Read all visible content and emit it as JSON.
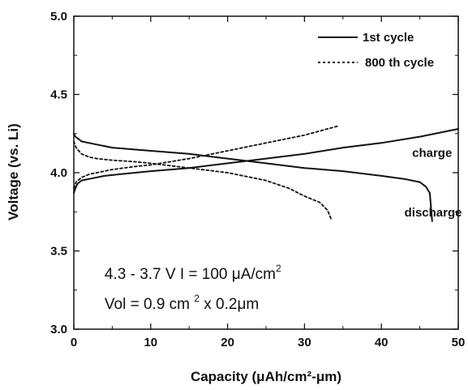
{
  "chart_data": {
    "type": "line",
    "xlabel": "Capacity (μAh/cm²-μm)",
    "ylabel": "Voltage (vs. Li)",
    "xlim": [
      0,
      50
    ],
    "ylim": [
      3.0,
      5.0
    ],
    "xticks": [
      "0",
      "10",
      "20",
      "30",
      "40",
      "50"
    ],
    "yticks": [
      "3.0",
      "3.5",
      "4.0",
      "4.5",
      "5.0"
    ],
    "grid": false,
    "legend_position": "top-right",
    "series": [
      {
        "name": "1st cycle",
        "style": "solid",
        "curve": "charge",
        "x": [
          0,
          0.2,
          0.5,
          1,
          2,
          4,
          6,
          8,
          10,
          15,
          20,
          25,
          30,
          35,
          40,
          45,
          50
        ],
        "y": [
          3.87,
          3.9,
          3.93,
          3.95,
          3.96,
          3.98,
          3.99,
          4.0,
          4.01,
          4.03,
          4.06,
          4.09,
          4.12,
          4.16,
          4.19,
          4.23,
          4.28
        ]
      },
      {
        "name": "1st cycle",
        "style": "solid",
        "curve": "discharge",
        "x": [
          0,
          0.2,
          0.5,
          1,
          3,
          5,
          10,
          15,
          20,
          25,
          30,
          35,
          40,
          43,
          45,
          45.8,
          46.3,
          46.6
        ],
        "y": [
          4.25,
          4.23,
          4.22,
          4.2,
          4.18,
          4.16,
          4.14,
          4.12,
          4.09,
          4.06,
          4.03,
          4.01,
          3.98,
          3.96,
          3.94,
          3.91,
          3.87,
          3.69
        ]
      },
      {
        "name": "800 th cycle",
        "style": "dotted",
        "curve": "charge",
        "x": [
          0,
          0.3,
          1,
          2,
          3,
          5,
          8,
          10,
          15,
          20,
          25,
          30,
          34.5
        ],
        "y": [
          3.9,
          3.94,
          3.97,
          3.99,
          4.0,
          4.02,
          4.04,
          4.05,
          4.09,
          4.14,
          4.19,
          4.24,
          4.3
        ]
      },
      {
        "name": "800 th cycle",
        "style": "dotted",
        "curve": "discharge",
        "x": [
          0,
          0.3,
          1,
          2,
          3,
          5,
          8,
          10,
          15,
          20,
          25,
          28,
          30,
          32,
          33,
          33.5
        ],
        "y": [
          4.2,
          4.16,
          4.12,
          4.1,
          4.09,
          4.08,
          4.07,
          4.06,
          4.03,
          4.0,
          3.95,
          3.9,
          3.85,
          3.81,
          3.76,
          3.7
        ]
      }
    ],
    "legend": [
      {
        "label": "1st cycle",
        "style": "solid"
      },
      {
        "label": "800 th cycle",
        "style": "dotted"
      }
    ],
    "annotations": {
      "charge": {
        "text": "charge",
        "x": 44,
        "y": 4.1
      },
      "discharge": {
        "text": "discharge",
        "x": 43,
        "y": 3.72
      },
      "condition_1": {
        "text_a": "4.3 - 3.7 V  I = 100 ",
        "unit_a": "μA/cm",
        "sup_a": "2",
        "x": 4,
        "y": 3.32
      },
      "condition_2": {
        "text_a": "Vol = 0.9 cm ",
        "sup_a": "2",
        "text_b": " x 0.2μm",
        "x": 4,
        "y": 3.13
      }
    },
    "colors": {
      "line": "#111111",
      "axes": "#111111",
      "background": "#ffffff"
    }
  }
}
